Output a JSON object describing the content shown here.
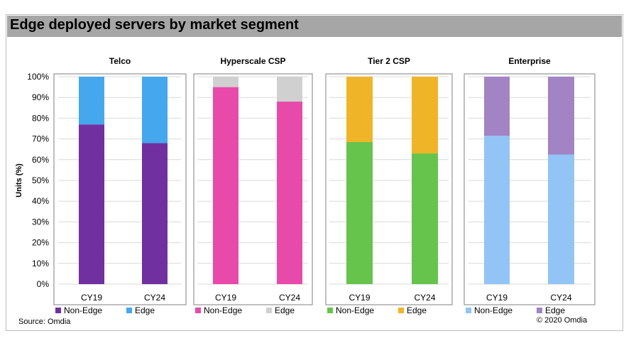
{
  "title": "Edge deployed servers by market segment",
  "source": "Source: Omdia",
  "copyright": "© 2020 Omdia",
  "chart_data": {
    "type": "bar",
    "stacked": true,
    "ylabel": "Units (%)",
    "ylim": [
      0,
      100
    ],
    "yticks": [
      "0%",
      "10%",
      "20%",
      "30%",
      "40%",
      "50%",
      "60%",
      "70%",
      "80%",
      "90%",
      "100%"
    ],
    "grid": true,
    "panels": [
      {
        "title": "Telco",
        "categories": [
          "CY19",
          "CY24"
        ],
        "series": [
          {
            "name": "Non-Edge",
            "color": "#7030a0",
            "values": [
              77,
              68
            ]
          },
          {
            "name": "Edge",
            "color": "#45a7ee",
            "values": [
              23,
              32
            ]
          }
        ]
      },
      {
        "title": "Hyperscale CSP",
        "categories": [
          "CY19",
          "CY24"
        ],
        "series": [
          {
            "name": "Non-Edge",
            "color": "#e84aaa",
            "values": [
              95,
              88
            ]
          },
          {
            "name": "Edge",
            "color": "#d0d0d0",
            "values": [
              5,
              12
            ]
          }
        ]
      },
      {
        "title": "Tier 2 CSP",
        "categories": [
          "CY19",
          "CY24"
        ],
        "series": [
          {
            "name": "Non-Edge",
            "color": "#66c44c",
            "values": [
              68.5,
              63
            ]
          },
          {
            "name": "Edge",
            "color": "#f0b428",
            "values": [
              31.5,
              37
            ]
          }
        ]
      },
      {
        "title": "Enterprise",
        "categories": [
          "CY19",
          "CY24"
        ],
        "series": [
          {
            "name": "Non-Edge",
            "color": "#93c4f6",
            "values": [
              71.5,
              62.5
            ]
          },
          {
            "name": "Edge",
            "color": "#a283c4",
            "values": [
              28.5,
              37.5
            ]
          }
        ]
      }
    ]
  }
}
